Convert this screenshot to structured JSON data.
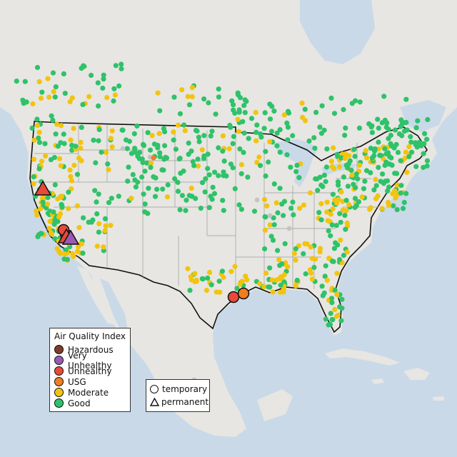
{
  "legend": {
    "title": "Air Quality Index",
    "categories": [
      {
        "label": "Hazardous",
        "color": "#7e3b2e"
      },
      {
        "label": "Very Unhealthy",
        "color": "#9a59b3"
      },
      {
        "label": "Unhealthy",
        "color": "#e84a3a"
      },
      {
        "label": "USG",
        "color": "#ef7d22"
      },
      {
        "label": "Moderate",
        "color": "#f2c40f"
      },
      {
        "label": "Good",
        "color": "#2fc26a"
      }
    ]
  },
  "shape_legend": {
    "temporary": "temporary",
    "permanent": "permanent"
  },
  "colors": {
    "water": "#c9d9e8",
    "land": "#e7e6e2",
    "border": "#111111",
    "state_lines": "#9a9a9a",
    "no_data_marker": "#c4c4c4"
  },
  "map_features": {
    "projection": "Lambert conformal, North America",
    "states_drawn": true
  }
}
